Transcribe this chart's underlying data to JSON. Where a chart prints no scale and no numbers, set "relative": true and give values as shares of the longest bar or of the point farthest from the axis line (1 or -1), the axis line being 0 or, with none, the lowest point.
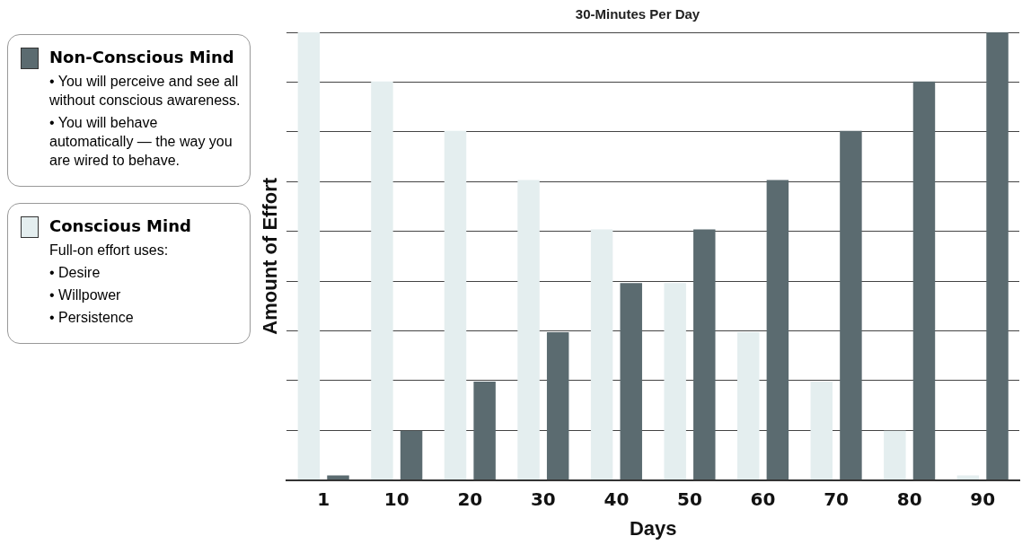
{
  "chart_data": {
    "type": "bar",
    "title": "30-Minutes Per Day",
    "xlabel": "Days",
    "ylabel": "Amount of Effort",
    "relative": true,
    "grid": "y",
    "legend": "left",
    "categories": [
      "1",
      "10",
      "20",
      "30",
      "40",
      "50",
      "60",
      "70",
      "80",
      "90"
    ],
    "series": [
      {
        "name": "Non-Conscious Mind",
        "color": "#5b6b70",
        "values": [
          0.01,
          0.11,
          0.22,
          0.33,
          0.44,
          0.56,
          0.67,
          0.78,
          0.89,
          1
        ]
      },
      {
        "name": "Conscious Mind",
        "color": "#e4eeef",
        "values": [
          1,
          0.89,
          0.78,
          0.67,
          0.56,
          0.44,
          0.33,
          0.22,
          0.11,
          0.01
        ]
      }
    ],
    "annotations": [
      "• You will perceive and see all without conscious awareness.",
      "• You will behave automatically — the way you are wired to behave.",
      "Full-on effort uses:",
      "• Desire",
      "• Willpower",
      "• Persistence"
    ]
  }
}
